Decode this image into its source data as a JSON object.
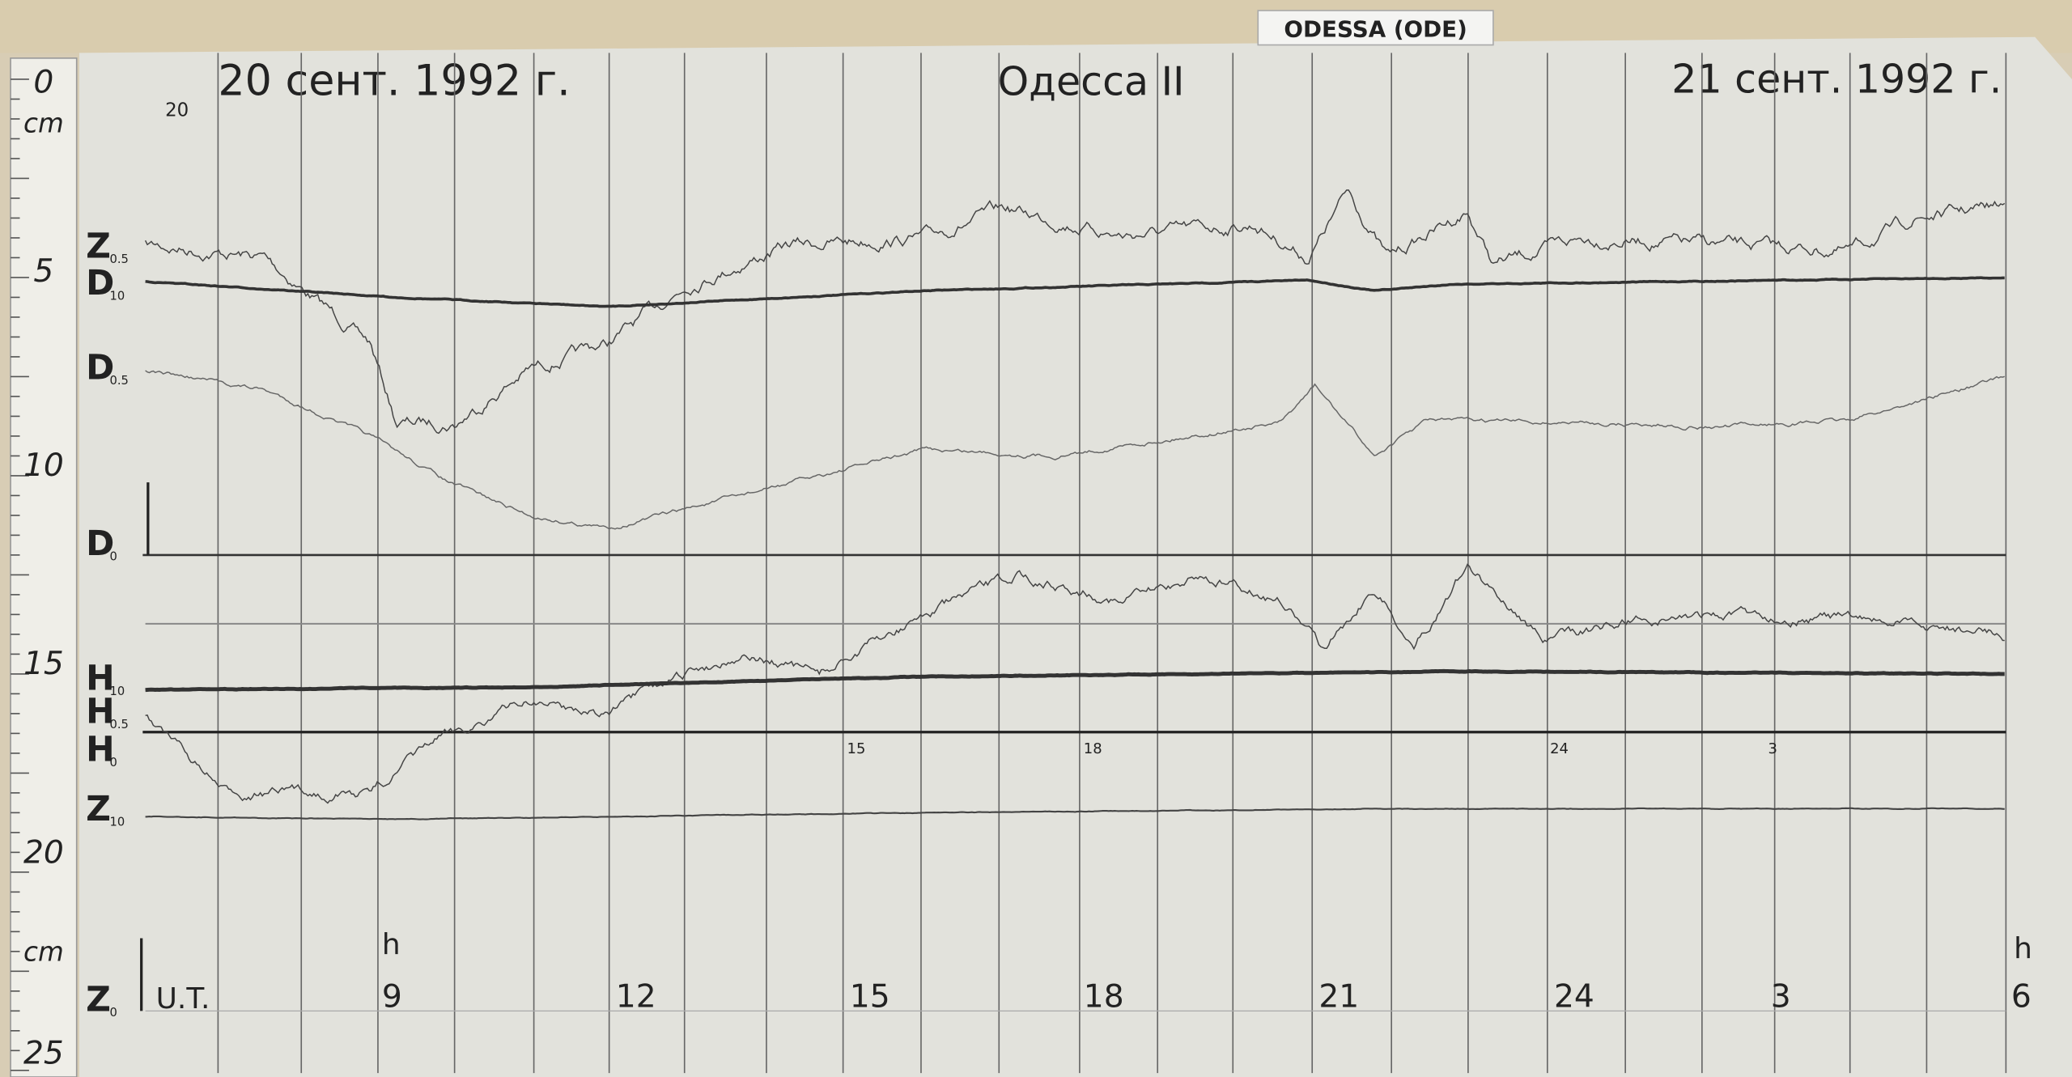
{
  "plate": {
    "label": "ODESSA (ODE)"
  },
  "header": {
    "left_date": "20 сент. 1992 г.",
    "station": "Одесса II",
    "right_date": "21 сент. 1992 г.",
    "pencil_note": "20"
  },
  "ruler": {
    "labels": [
      "0",
      "cm",
      "5",
      "10",
      "15",
      "20",
      "cm",
      "25"
    ]
  },
  "trace_labels": [
    {
      "letter": "Z",
      "sub": "0.5"
    },
    {
      "letter": "D",
      "sub": "10"
    },
    {
      "letter": "D",
      "sub": "0.5"
    },
    {
      "letter": "D",
      "sub": "0"
    },
    {
      "letter": "H",
      "sub": "10"
    },
    {
      "letter": "H",
      "sub": "0.5"
    },
    {
      "letter": "H",
      "sub": "0"
    },
    {
      "letter": "Z",
      "sub": "10"
    },
    {
      "letter": "Z",
      "sub": "0"
    }
  ],
  "time_axis": {
    "unit_label": "U.T.",
    "hour_mark": "h",
    "labels": [
      "9",
      "12",
      "15",
      "18",
      "21",
      "24",
      "3",
      "6"
    ],
    "pencil_hours": [
      "15",
      "18",
      "24",
      "3"
    ]
  }
}
